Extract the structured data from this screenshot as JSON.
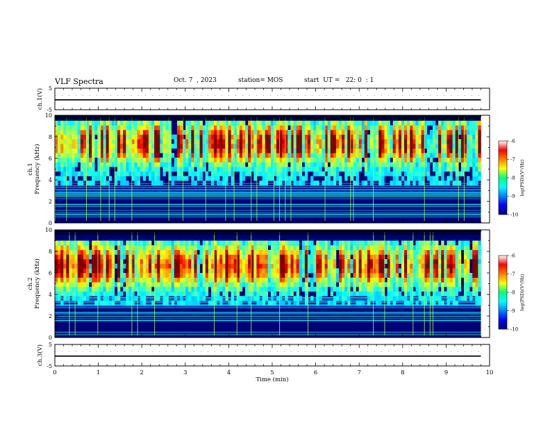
{
  "header": {
    "title": "VLF Spectra",
    "date": "Oct. 7  , 2023",
    "station": "station= MOS",
    "start": "start  UT =   22: 0  : 1"
  },
  "colors": {
    "background": "#ffffff",
    "spectro_bg": "#000080"
  },
  "chart_data": [
    {
      "type": "line",
      "name": "ch1-waveform",
      "ylabel": "ch.1(V)",
      "ylim": [
        -5,
        5
      ],
      "yticks": [
        "5",
        "-5"
      ],
      "xlim": [
        0,
        10
      ],
      "x": [
        0,
        9.8
      ],
      "values": [
        -0.4,
        -0.4
      ]
    },
    {
      "type": "heatmap",
      "name": "ch1-spectrogram",
      "ylabel": "ch.1\nFrequency (kHz)",
      "ylim": [
        0,
        10
      ],
      "yticks": [
        "0",
        "2",
        "4",
        "6",
        "8",
        "10"
      ],
      "xlim": [
        0,
        10
      ],
      "data_xmax": 9.8,
      "colorbar": {
        "label": "log(PSD)(V²/Hz)",
        "range": [
          -10,
          -6
        ],
        "ticks": [
          "-6",
          "-7",
          "-8",
          "-9",
          "-10"
        ]
      }
    },
    {
      "type": "heatmap",
      "name": "ch2-spectrogram",
      "ylabel": "ch.2\nFrequency (kHz)",
      "ylim": [
        0,
        10
      ],
      "yticks": [
        "0",
        "2",
        "4",
        "6",
        "8",
        "10"
      ],
      "xlim": [
        0,
        10
      ],
      "data_xmax": 9.8,
      "colorbar": {
        "label": "log(PSD)(V²/Hz)",
        "range": [
          -10,
          -6
        ],
        "ticks": [
          "-6",
          "-7",
          "-8",
          "-9",
          "-10"
        ]
      }
    },
    {
      "type": "line",
      "name": "ch3-waveform",
      "ylabel": "ch.3(V)",
      "ylim": [
        -5,
        5
      ],
      "yticks": [
        "5",
        "-5"
      ],
      "xlim": [
        0,
        10
      ],
      "x": [
        0,
        9.8
      ],
      "values": [
        -0.4,
        -0.4
      ]
    }
  ],
  "xaxis": {
    "label": "Time (min)",
    "ticks": [
      "0",
      "1",
      "2",
      "3",
      "4",
      "5",
      "6",
      "7",
      "8",
      "9",
      "10"
    ]
  }
}
